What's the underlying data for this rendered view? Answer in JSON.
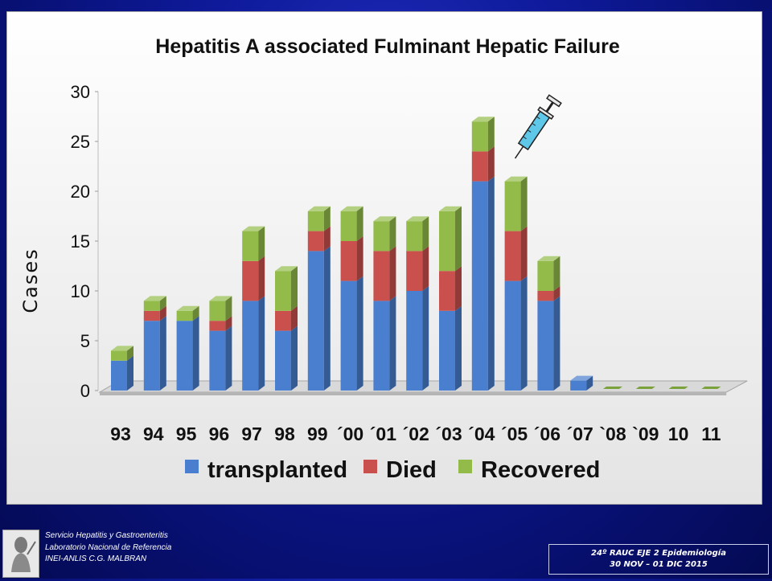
{
  "chart_data": {
    "type": "bar",
    "stacked": true,
    "title": "Hepatitis A associated Fulminant Hepatic Failure",
    "ylabel": "Cases",
    "xlabel": "",
    "ylim": [
      0,
      30
    ],
    "yticks": [
      0,
      5,
      10,
      15,
      20,
      25,
      30
    ],
    "categories": [
      "93",
      "94",
      "95",
      "96",
      "97",
      "98",
      "99",
      "´00",
      "´01",
      "´02",
      "´03",
      "´04",
      "´05",
      "´06",
      "´07",
      "`08",
      "`09",
      "10",
      "11"
    ],
    "series": [
      {
        "name": "transplanted",
        "color": "#4a7fcf",
        "values": [
          3,
          7,
          7,
          6,
          9,
          6,
          14,
          11,
          9,
          10,
          8,
          21,
          11,
          9,
          1,
          0,
          0,
          0,
          0
        ]
      },
      {
        "name": "Died",
        "color": "#c9504c",
        "values": [
          0,
          1,
          0,
          1,
          4,
          2,
          2,
          4,
          5,
          4,
          4,
          3,
          5,
          1,
          0,
          0,
          0,
          0,
          0
        ]
      },
      {
        "name": "Recovered",
        "color": "#93bb4a",
        "values": [
          1,
          1,
          1,
          2,
          3,
          4,
          2,
          3,
          3,
          3,
          6,
          3,
          5,
          3,
          0,
          0,
          0,
          0,
          0
        ]
      }
    ],
    "legend_position": "bottom",
    "grid": false,
    "style": "3d"
  },
  "footer": {
    "lines": [
      "Servicio Hepatitis y Gastroenteritis",
      "Laboratorio Nacional de Referencia",
      "INEI-ANLIS C.G. MALBRAN"
    ],
    "event_line1": "24º RAUC EJE 2  Epidemiología",
    "event_line2": "30 NOV – 01 DIC  2015"
  },
  "icons": {
    "syringe": "syringe-icon",
    "logo": "institution-logo-icon"
  }
}
